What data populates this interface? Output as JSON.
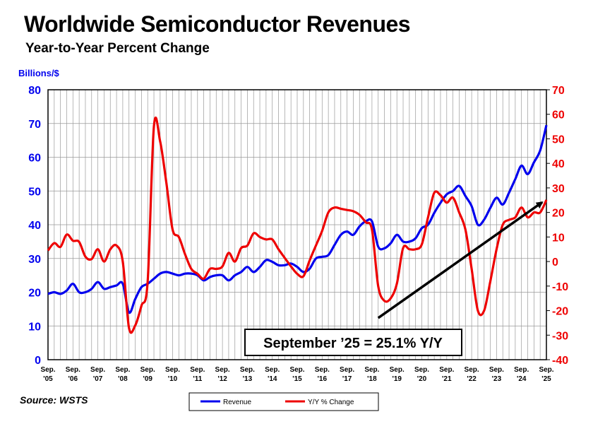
{
  "header": {
    "title": "Worldwide Semiconductor Revenues",
    "subtitle": "Year-to-Year Percent Change"
  },
  "footer": {
    "source": "Source: WSTS"
  },
  "colors": {
    "revenue": "#0000ee",
    "yoy": "#ee0000",
    "trend": "#000000",
    "grid": "#999999"
  },
  "chart_data": {
    "type": "line",
    "title": "Worldwide Semiconductor Revenues",
    "subtitle": "Year-to-Year Percent Change",
    "ylabel_left": "Billions/$",
    "left_axis": {
      "min": 0,
      "max": 80,
      "ticks": [
        0,
        10,
        20,
        30,
        40,
        50,
        60,
        70,
        80
      ]
    },
    "right_axis": {
      "min": -40,
      "max": 70,
      "ticks": [
        -40,
        -30,
        -20,
        -10,
        0,
        10,
        20,
        30,
        40,
        50,
        60,
        70
      ]
    },
    "x_start": 2005.75,
    "x_end": 2025.75,
    "x_tick_labels": [
      {
        "line1": "Sep.",
        "line2": "'05"
      },
      {
        "line1": "Sep.",
        "line2": "'06"
      },
      {
        "line1": "Sep.",
        "line2": "'07"
      },
      {
        "line1": "Sep.",
        "line2": "'08"
      },
      {
        "line1": "Sep.",
        "line2": "'09"
      },
      {
        "line1": "Sep.",
        "line2": "'10"
      },
      {
        "line1": "Sep.",
        "line2": "'11"
      },
      {
        "line1": "Sep.",
        "line2": "'12"
      },
      {
        "line1": "Sep.",
        "line2": "'13"
      },
      {
        "line1": "Sep.",
        "line2": "'14"
      },
      {
        "line1": "Sep.",
        "line2": "'15"
      },
      {
        "line1": "Sep.",
        "line2": "'16"
      },
      {
        "line1": "Sep.",
        "line2": "'17"
      },
      {
        "line1": "Sep.",
        "line2": "'18"
      },
      {
        "line1": "Sep.",
        "line2": "'19"
      },
      {
        "line1": "Sep.",
        "line2": "'20"
      },
      {
        "line1": "Sep.",
        "line2": "'21"
      },
      {
        "line1": "Sep.",
        "line2": "'22"
      },
      {
        "line1": "Sep.",
        "line2": "'23"
      },
      {
        "line1": "Sep.",
        "line2": "'24"
      },
      {
        "line1": "Sep.",
        "line2": "'25"
      }
    ],
    "series": [
      {
        "name": "Revenue",
        "axis": "left",
        "points": [
          [
            2005.75,
            19.5
          ],
          [
            2006.0,
            20.0
          ],
          [
            2006.25,
            19.5
          ],
          [
            2006.5,
            20.5
          ],
          [
            2006.75,
            22.5
          ],
          [
            2007.0,
            20.0
          ],
          [
            2007.25,
            20.0
          ],
          [
            2007.5,
            21.0
          ],
          [
            2007.75,
            23.0
          ],
          [
            2008.0,
            21.0
          ],
          [
            2008.25,
            21.5
          ],
          [
            2008.5,
            22.0
          ],
          [
            2008.75,
            22.5
          ],
          [
            2009.0,
            14.0
          ],
          [
            2009.25,
            18.0
          ],
          [
            2009.5,
            21.5
          ],
          [
            2009.75,
            22.5
          ],
          [
            2010.0,
            24.0
          ],
          [
            2010.25,
            25.5
          ],
          [
            2010.5,
            26.0
          ],
          [
            2010.75,
            25.5
          ],
          [
            2011.0,
            25.0
          ],
          [
            2011.25,
            25.5
          ],
          [
            2011.5,
            25.5
          ],
          [
            2011.75,
            25.0
          ],
          [
            2012.0,
            23.5
          ],
          [
            2012.25,
            24.5
          ],
          [
            2012.5,
            25.0
          ],
          [
            2012.75,
            25.0
          ],
          [
            2013.0,
            23.5
          ],
          [
            2013.25,
            25.0
          ],
          [
            2013.5,
            26.0
          ],
          [
            2013.75,
            27.5
          ],
          [
            2014.0,
            26.0
          ],
          [
            2014.25,
            27.5
          ],
          [
            2014.5,
            29.5
          ],
          [
            2014.75,
            29.0
          ],
          [
            2015.0,
            28.0
          ],
          [
            2015.25,
            28.0
          ],
          [
            2015.5,
            28.5
          ],
          [
            2015.75,
            27.5
          ],
          [
            2016.0,
            26.0
          ],
          [
            2016.25,
            27.0
          ],
          [
            2016.5,
            30.0
          ],
          [
            2016.75,
            30.5
          ],
          [
            2017.0,
            31.0
          ],
          [
            2017.25,
            34.0
          ],
          [
            2017.5,
            37.0
          ],
          [
            2017.75,
            38.0
          ],
          [
            2018.0,
            37.0
          ],
          [
            2018.25,
            39.5
          ],
          [
            2018.5,
            41.0
          ],
          [
            2018.75,
            41.0
          ],
          [
            2019.0,
            33.5
          ],
          [
            2019.25,
            33.0
          ],
          [
            2019.5,
            34.5
          ],
          [
            2019.75,
            37.0
          ],
          [
            2020.0,
            35.0
          ],
          [
            2020.25,
            35.0
          ],
          [
            2020.5,
            36.0
          ],
          [
            2020.75,
            39.0
          ],
          [
            2021.0,
            40.0
          ],
          [
            2021.25,
            43.5
          ],
          [
            2021.5,
            46.5
          ],
          [
            2021.75,
            49.0
          ],
          [
            2022.0,
            50.0
          ],
          [
            2022.25,
            51.5
          ],
          [
            2022.5,
            48.5
          ],
          [
            2022.75,
            45.5
          ],
          [
            2023.0,
            40.0
          ],
          [
            2023.25,
            41.5
          ],
          [
            2023.5,
            45.0
          ],
          [
            2023.75,
            48.0
          ],
          [
            2024.0,
            46.0
          ],
          [
            2024.25,
            49.5
          ],
          [
            2024.5,
            53.5
          ],
          [
            2024.75,
            57.5
          ],
          [
            2025.0,
            55.0
          ],
          [
            2025.25,
            58.5
          ],
          [
            2025.5,
            62.0
          ],
          [
            2025.75,
            69.5
          ]
        ]
      },
      {
        "name": "Y/Y % Change",
        "axis": "right",
        "points": [
          [
            2005.75,
            4.5
          ],
          [
            2006.0,
            7.5
          ],
          [
            2006.25,
            6.0
          ],
          [
            2006.5,
            11.0
          ],
          [
            2006.75,
            8.5
          ],
          [
            2007.0,
            8.0
          ],
          [
            2007.25,
            2.0
          ],
          [
            2007.5,
            1.0
          ],
          [
            2007.75,
            5.0
          ],
          [
            2008.0,
            0.0
          ],
          [
            2008.25,
            5.0
          ],
          [
            2008.5,
            6.5
          ],
          [
            2008.75,
            0.0
          ],
          [
            2009.0,
            -27.0
          ],
          [
            2009.25,
            -26.0
          ],
          [
            2009.5,
            -18.0
          ],
          [
            2009.75,
            -8.0
          ],
          [
            2010.0,
            55.0
          ],
          [
            2010.25,
            49.0
          ],
          [
            2010.5,
            32.0
          ],
          [
            2010.75,
            13.0
          ],
          [
            2011.0,
            10.0
          ],
          [
            2011.25,
            3.0
          ],
          [
            2011.5,
            -3.0
          ],
          [
            2011.75,
            -5.0
          ],
          [
            2012.0,
            -7.0
          ],
          [
            2012.25,
            -3.0
          ],
          [
            2012.5,
            -3.0
          ],
          [
            2012.75,
            -2.0
          ],
          [
            2013.0,
            3.5
          ],
          [
            2013.25,
            0.0
          ],
          [
            2013.5,
            5.5
          ],
          [
            2013.75,
            6.5
          ],
          [
            2014.0,
            11.5
          ],
          [
            2014.25,
            10.0
          ],
          [
            2014.5,
            9.0
          ],
          [
            2014.75,
            9.0
          ],
          [
            2015.0,
            5.0
          ],
          [
            2015.25,
            1.5
          ],
          [
            2015.5,
            -2.0
          ],
          [
            2015.75,
            -5.0
          ],
          [
            2016.0,
            -6.0
          ],
          [
            2016.25,
            0.5
          ],
          [
            2016.5,
            6.5
          ],
          [
            2016.75,
            12.5
          ],
          [
            2017.0,
            20.0
          ],
          [
            2017.25,
            22.0
          ],
          [
            2017.5,
            21.5
          ],
          [
            2017.75,
            21.0
          ],
          [
            2018.0,
            20.5
          ],
          [
            2018.25,
            19.0
          ],
          [
            2018.5,
            16.0
          ],
          [
            2018.75,
            13.0
          ],
          [
            2019.0,
            -10.0
          ],
          [
            2019.25,
            -16.0
          ],
          [
            2019.5,
            -15.0
          ],
          [
            2019.75,
            -9.0
          ],
          [
            2020.0,
            5.5
          ],
          [
            2020.25,
            5.0
          ],
          [
            2020.5,
            5.0
          ],
          [
            2020.75,
            7.0
          ],
          [
            2021.0,
            18.0
          ],
          [
            2021.25,
            28.0
          ],
          [
            2021.5,
            27.0
          ],
          [
            2021.75,
            24.0
          ],
          [
            2022.0,
            26.0
          ],
          [
            2022.25,
            20.0
          ],
          [
            2022.5,
            13.0
          ],
          [
            2022.75,
            -3.0
          ],
          [
            2023.0,
            -20.0
          ],
          [
            2023.25,
            -20.0
          ],
          [
            2023.5,
            -8.0
          ],
          [
            2023.75,
            5.0
          ],
          [
            2024.0,
            15.0
          ],
          [
            2024.25,
            17.0
          ],
          [
            2024.5,
            18.0
          ],
          [
            2024.75,
            22.0
          ],
          [
            2025.0,
            18.0
          ],
          [
            2025.25,
            20.0
          ],
          [
            2025.5,
            20.0
          ],
          [
            2025.75,
            25.1
          ]
        ]
      }
    ],
    "trend_arrow": {
      "from": [
        2019.0,
        -23
      ],
      "to": [
        2025.75,
        25
      ]
    },
    "annotation": "September ’25 = 25.1% Y/Y",
    "legend": {
      "position": "bottom-center",
      "entries": [
        "Revenue",
        "Y/Y % Change"
      ]
    }
  }
}
